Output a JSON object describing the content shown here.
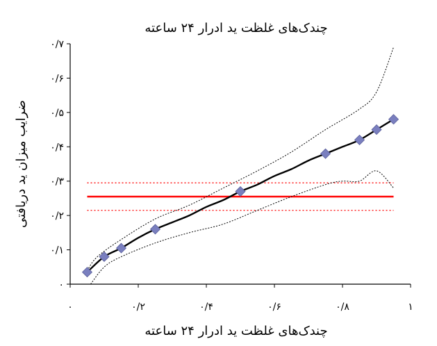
{
  "chart_data": {
    "type": "scatter",
    "title": "چندک‌های غلظت ید ادرار ۲۴ ساعته",
    "xlabel": "چندک‌های غلظت ید ادرار ۲۴ ساعته",
    "ylabel": "ضرایب میزان ید دریافتی",
    "xlim": [
      0,
      1
    ],
    "ylim": [
      0,
      0.7
    ],
    "xticks": [
      {
        "value": 0,
        "label": "۰"
      },
      {
        "value": 0.2,
        "label": "۰/۲"
      },
      {
        "value": 0.4,
        "label": "۰/۴"
      },
      {
        "value": 0.6,
        "label": "۰/۶"
      },
      {
        "value": 0.8,
        "label": "۰/۸"
      },
      {
        "value": 1,
        "label": "۱"
      }
    ],
    "yticks": [
      {
        "value": 0,
        "label": "۰"
      },
      {
        "value": 0.1,
        "label": "۰/۱"
      },
      {
        "value": 0.2,
        "label": "۰/۲"
      },
      {
        "value": 0.3,
        "label": "۰/۳"
      },
      {
        "value": 0.4,
        "label": "۰/۴"
      },
      {
        "value": 0.5,
        "label": "۰/۵"
      },
      {
        "value": 0.6,
        "label": "۰/۶"
      },
      {
        "value": 0.7,
        "label": "۰/۷"
      }
    ],
    "points": [
      {
        "x": 0.05,
        "y": 0.035
      },
      {
        "x": 0.1,
        "y": 0.08
      },
      {
        "x": 0.15,
        "y": 0.105
      },
      {
        "x": 0.25,
        "y": 0.16
      },
      {
        "x": 0.5,
        "y": 0.27
      },
      {
        "x": 0.75,
        "y": 0.38
      },
      {
        "x": 0.85,
        "y": 0.42
      },
      {
        "x": 0.9,
        "y": 0.45
      },
      {
        "x": 0.95,
        "y": 0.48
      }
    ],
    "quantile_curve": [
      [
        0.05,
        0.035
      ],
      [
        0.1,
        0.08
      ],
      [
        0.15,
        0.105
      ],
      [
        0.2,
        0.135
      ],
      [
        0.25,
        0.16
      ],
      [
        0.3,
        0.18
      ],
      [
        0.35,
        0.2
      ],
      [
        0.4,
        0.225
      ],
      [
        0.45,
        0.245
      ],
      [
        0.5,
        0.27
      ],
      [
        0.55,
        0.29
      ],
      [
        0.6,
        0.315
      ],
      [
        0.65,
        0.335
      ],
      [
        0.7,
        0.36
      ],
      [
        0.75,
        0.38
      ],
      [
        0.8,
        0.4
      ],
      [
        0.85,
        0.42
      ],
      [
        0.9,
        0.45
      ],
      [
        0.95,
        0.48
      ]
    ],
    "upper_ci": [
      [
        0.05,
        0.04
      ],
      [
        0.08,
        0.08
      ],
      [
        0.15,
        0.13
      ],
      [
        0.25,
        0.19
      ],
      [
        0.35,
        0.23
      ],
      [
        0.45,
        0.28
      ],
      [
        0.55,
        0.33
      ],
      [
        0.65,
        0.385
      ],
      [
        0.75,
        0.45
      ],
      [
        0.85,
        0.51
      ],
      [
        0.9,
        0.56
      ],
      [
        0.95,
        0.69
      ]
    ],
    "lower_ci": [
      [
        0.06,
        0.0
      ],
      [
        0.1,
        0.05
      ],
      [
        0.15,
        0.08
      ],
      [
        0.25,
        0.12
      ],
      [
        0.35,
        0.15
      ],
      [
        0.45,
        0.175
      ],
      [
        0.55,
        0.215
      ],
      [
        0.65,
        0.255
      ],
      [
        0.75,
        0.29
      ],
      [
        0.8,
        0.3
      ],
      [
        0.85,
        0.3
      ],
      [
        0.9,
        0.33
      ],
      [
        0.95,
        0.28
      ]
    ],
    "reference_line": {
      "y": 0.255,
      "color": "#ff0000"
    },
    "reference_ci": {
      "lower": 0.215,
      "upper": 0.295,
      "color": "#ff0000"
    },
    "colors": {
      "marker": "#7a7fbf",
      "marker_stroke": "#5a5f9a",
      "curve": "#000000",
      "ci": "#000000"
    },
    "grid": false
  }
}
